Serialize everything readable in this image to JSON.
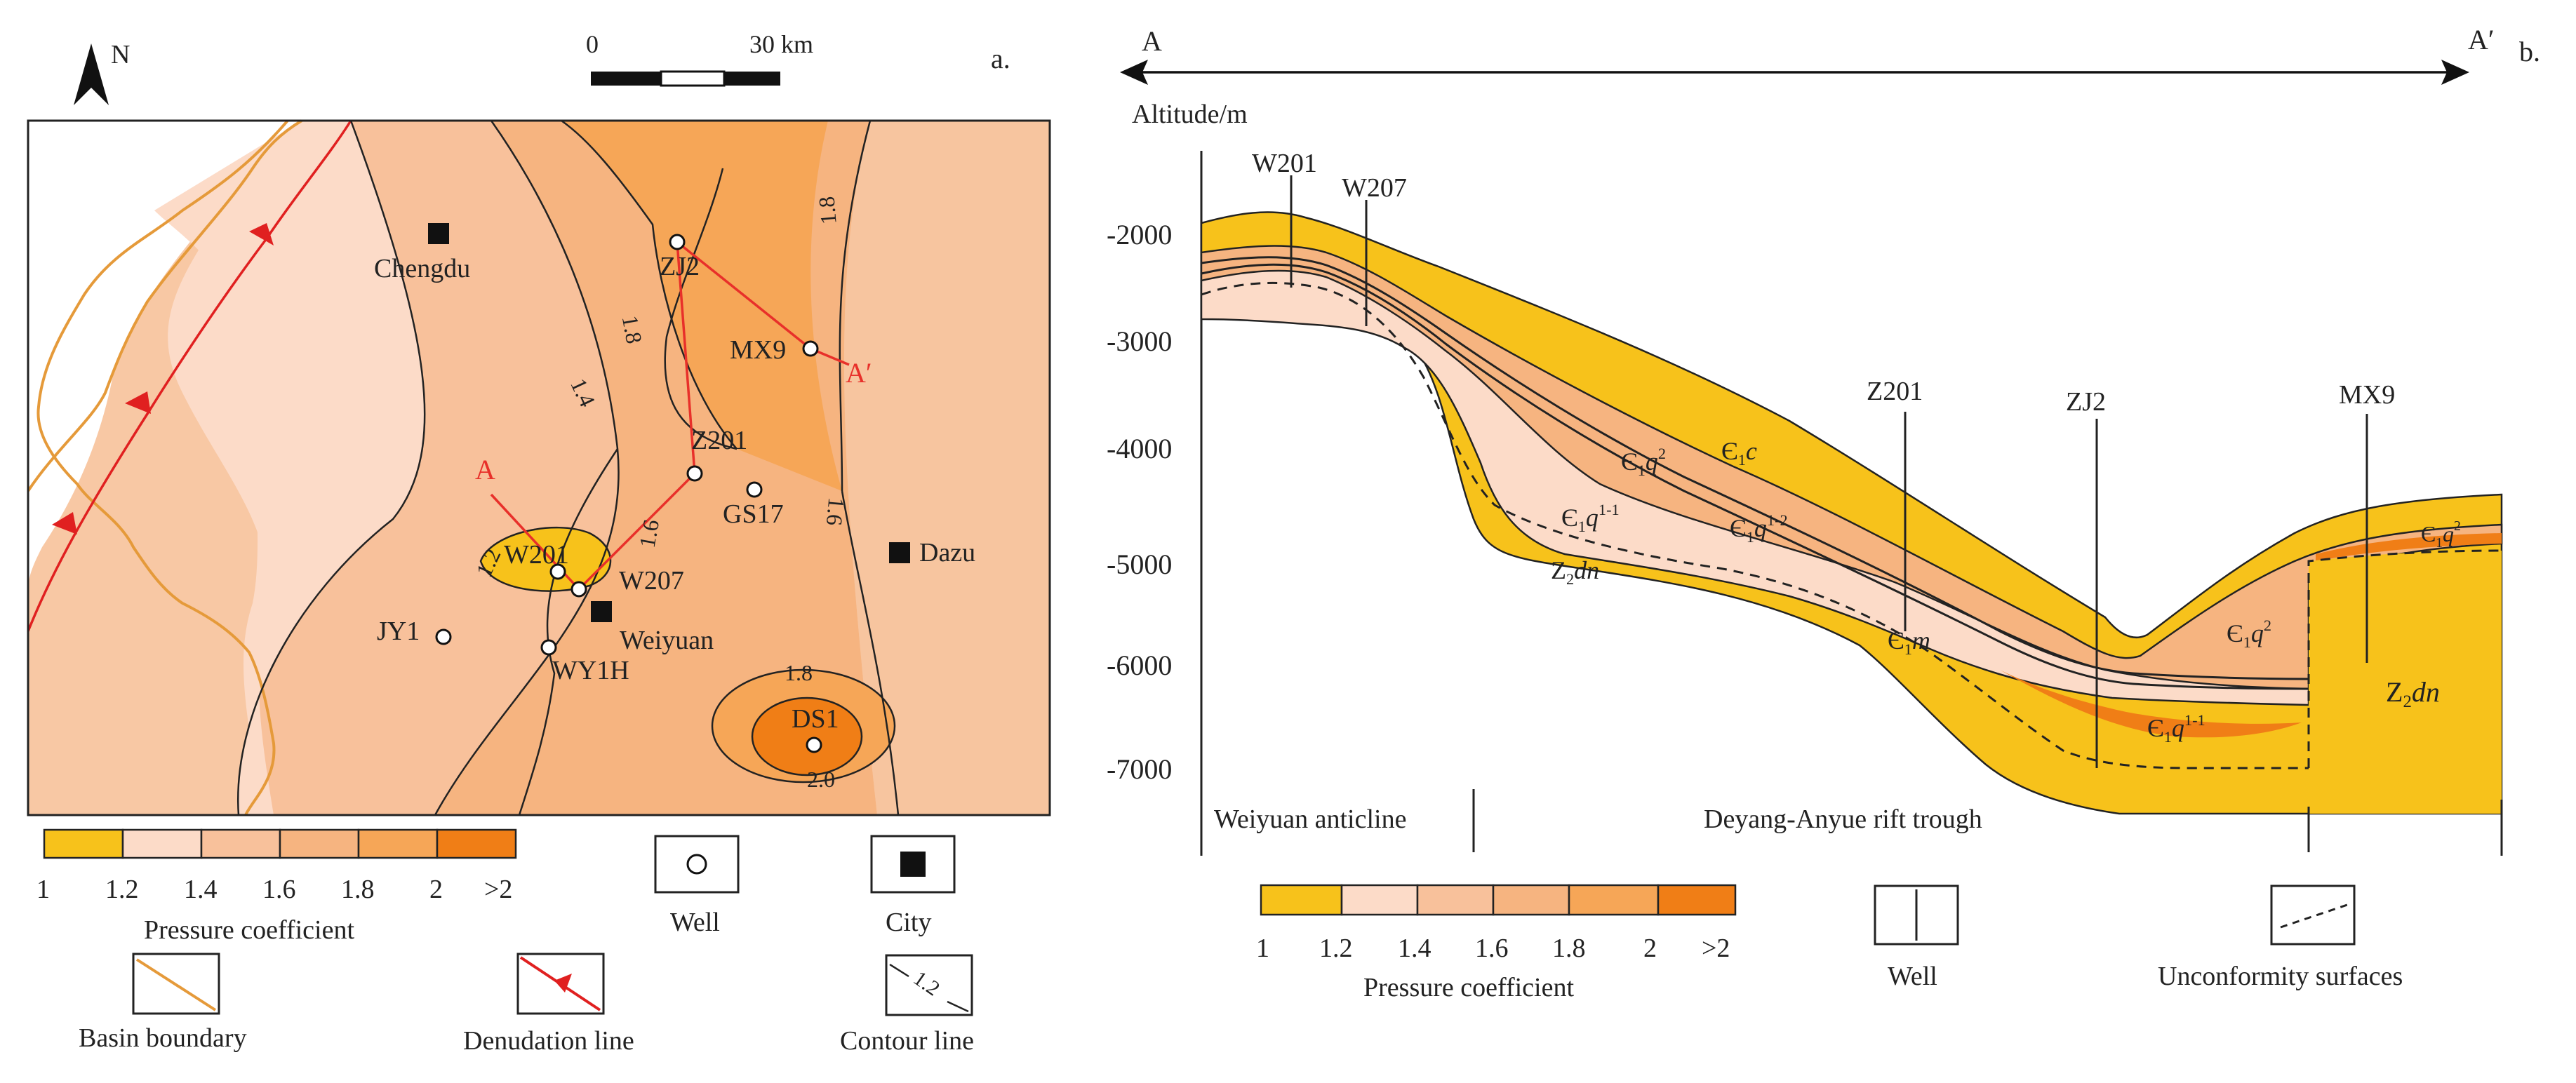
{
  "panel_a": {
    "panel_label": "a.",
    "north_label": "N",
    "scale_bar": {
      "start_label": "0",
      "end_label": "30 km"
    },
    "places": {
      "chengdu": "Chengdu",
      "weiyuan": "Weiyuan",
      "dazu": "Dazu"
    },
    "wells": {
      "zj2": "ZJ2",
      "mx9": "MX9",
      "z201": "Z201",
      "gs17": "GS17",
      "w201": "W201",
      "w207": "W207",
      "jy1": "JY1",
      "wy1h": "WY1H",
      "ds1": "DS1"
    },
    "section_labels": {
      "start": "A",
      "end": "A′"
    },
    "contours": {
      "c18_north": "1.8",
      "c18_east": "1.8",
      "c14": "1.4",
      "c12": "1.2",
      "c16_mid": "1.6",
      "c16_east": "1.6",
      "c18_ds1": "1.8",
      "c20_ds1": "2.0"
    },
    "legend": {
      "title": "Pressure coefficient",
      "tick_labels": [
        "1",
        "1.2",
        "1.4",
        "1.6",
        "1.8",
        "2",
        ">2"
      ],
      "colors": [
        "#f7c21b",
        "#fcdbc8",
        "#f8c19b",
        "#f6b480",
        "#f6a657",
        "#f07e16"
      ],
      "well_label": "Well",
      "city_label": "City",
      "basin_boundary_label": "Basin boundary",
      "denudation_line_label": "Denudation line",
      "contour_line_label": "Contour line",
      "contour_sample": "1.2"
    }
  },
  "panel_b": {
    "panel_label": "b.",
    "section_start": "A",
    "section_end": "A′",
    "axis_title": "Altitude/m",
    "y_ticks": [
      "-2000",
      "-3000",
      "-4000",
      "-5000",
      "-6000",
      "-7000"
    ],
    "wells": {
      "w201": "W201",
      "w207": "W207",
      "z201": "Z201",
      "zj2": "ZJ2",
      "mx9": "MX9"
    },
    "formations": {
      "c1c": {
        "base": "Є",
        "sub": "1",
        "rest": "c",
        "sup": ""
      },
      "c1q2_upper": {
        "base": "Є",
        "sub": "1",
        "rest": "q",
        "sup": "2"
      },
      "c1q11": {
        "base": "Є",
        "sub": "1",
        "rest": "q",
        "sup": "1-1"
      },
      "c1q12": {
        "base": "Є",
        "sub": "1",
        "rest": "q",
        "sup": "1-2"
      },
      "z2dn_left": {
        "base": "Z",
        "sub": "2",
        "rest": "dn",
        "sup": ""
      },
      "c1m": {
        "base": "Є",
        "sub": "1",
        "rest": "m",
        "sup": ""
      },
      "c1q11_right": {
        "base": "Є",
        "sub": "1",
        "rest": "q",
        "sup": "1-1"
      },
      "c1q2_mid": {
        "base": "Є",
        "sub": "1",
        "rest": "q",
        "sup": "2"
      },
      "c1q2_right": {
        "base": "Є",
        "sub": "1",
        "rest": "q",
        "sup": "2"
      },
      "z2dn_right": {
        "base": "Z",
        "sub": "2",
        "rest": "dn",
        "sup": ""
      }
    },
    "bottom_labels": {
      "weiyuan_anticline": "Weiyuan anticline",
      "rift_trough": "Deyang-Anyue rift trough"
    },
    "legend": {
      "title": "Pressure coefficient",
      "tick_labels": [
        "1",
        "1.2",
        "1.4",
        "1.6",
        "1.8",
        "2",
        ">2"
      ],
      "colors": [
        "#f7c21b",
        "#fcdbc8",
        "#f8c19b",
        "#f6b480",
        "#f6a657",
        "#f07e16"
      ],
      "well_label": "Well",
      "unconformity_label": "Unconformity surfaces"
    }
  }
}
